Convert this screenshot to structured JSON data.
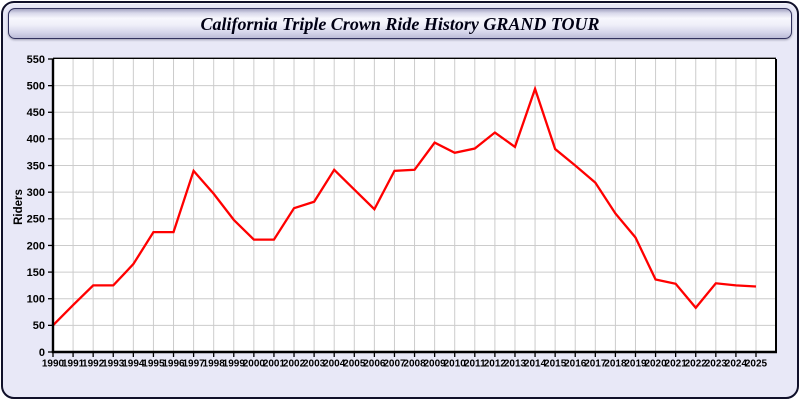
{
  "header": {
    "title": "California Triple Crown Ride History GRAND TOUR"
  },
  "colors": {
    "frame_bg": "#e8e8f7",
    "frame_border": "#10102a",
    "plot_bg": "#ffffff",
    "grid": "#cccccc",
    "axis": "#000000",
    "tick_label": "#000000",
    "line": "#ff0000"
  },
  "chart_data": {
    "type": "line",
    "title": "California Triple Crown Ride History GRAND TOUR",
    "xlabel": "",
    "ylabel": "Riders",
    "ylim": [
      0,
      550
    ],
    "ytick_step": 50,
    "grid": true,
    "legend_position": "none",
    "categories": [
      1990,
      1991,
      1992,
      1993,
      1994,
      1995,
      1996,
      1997,
      1998,
      1999,
      2000,
      2001,
      2002,
      2003,
      2004,
      2005,
      2006,
      2007,
      2008,
      2009,
      2010,
      2011,
      2012,
      2013,
      2014,
      2015,
      2016,
      2017,
      2018,
      2019,
      2020,
      2021,
      2022,
      2023,
      2024,
      2025
    ],
    "series": [
      {
        "name": "Riders",
        "color": "#ff0000",
        "values": [
          50,
          88,
          125,
          125,
          165,
          225,
          225,
          340,
          297,
          248,
          211,
          211,
          270,
          282,
          342,
          305,
          268,
          340,
          342,
          393,
          374,
          382,
          412,
          385,
          494,
          381,
          350,
          318,
          260,
          215,
          136,
          128,
          83,
          129,
          125,
          123
        ]
      }
    ]
  }
}
